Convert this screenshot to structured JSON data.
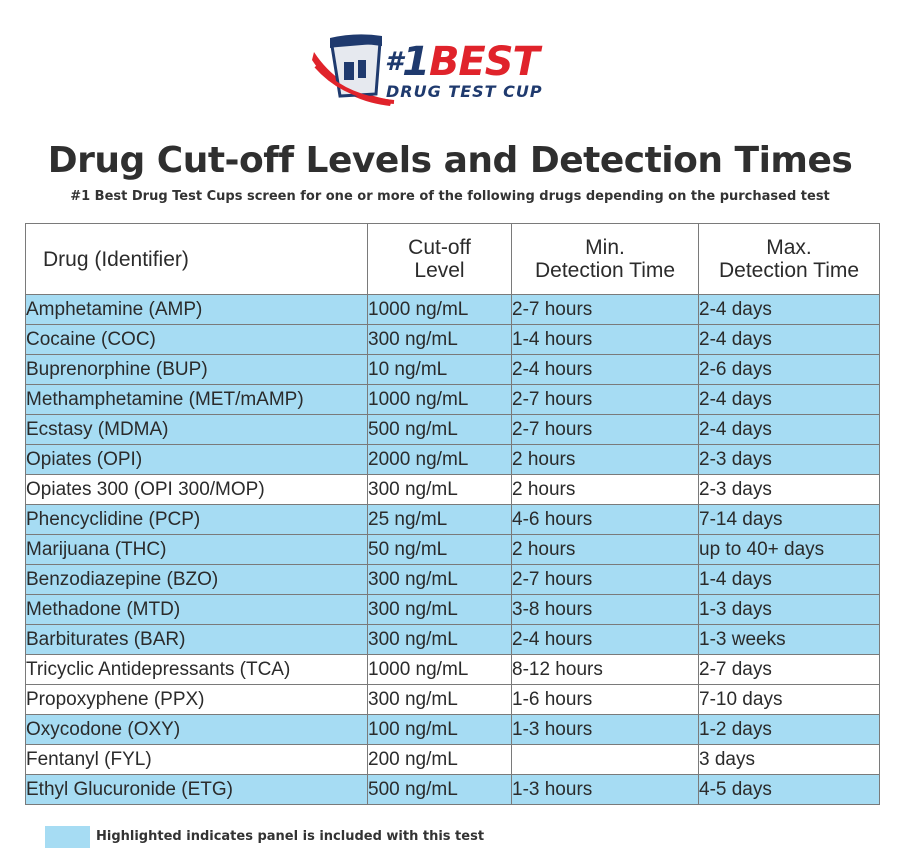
{
  "logo": {
    "hash": "#",
    "number": "1",
    "brand": "BEST",
    "tagline": "DRUG TEST CUP",
    "colors": {
      "navy": "#1f3a6e",
      "red": "#e0232b"
    }
  },
  "title": "Drug Cut-off Levels and Detection Times",
  "subtitle": "#1 Best Drug Test Cups screen for one or more of the following drugs depending on the purchased test",
  "table": {
    "headers": {
      "drug": "Drug (Identifier)",
      "cutoff_1": "Cut-off",
      "cutoff_2": "Level",
      "min_1": "Min.",
      "min_2": "Detection Time",
      "max_1": "Max.",
      "max_2": "Detection Time"
    },
    "highlight_color": "#a6dcf3",
    "rows": [
      {
        "drug": "Amphetamine (AMP)",
        "cutoff": "1000 ng/mL",
        "min": "2-7 hours",
        "max": "2-4 days",
        "highlighted": true
      },
      {
        "drug": "Cocaine (COC)",
        "cutoff": "300 ng/mL",
        "min": "1-4 hours",
        "max": "2-4 days",
        "highlighted": true
      },
      {
        "drug": "Buprenorphine (BUP)",
        "cutoff": "10 ng/mL",
        "min": "2-4 hours",
        "max": "2-6 days",
        "highlighted": true
      },
      {
        "drug": "Methamphetamine (MET/mAMP)",
        "cutoff": "1000 ng/mL",
        "min": "2-7 hours",
        "max": "2-4 days",
        "highlighted": true
      },
      {
        "drug": "Ecstasy (MDMA)",
        "cutoff": "500 ng/mL",
        "min": "2-7 hours",
        "max": "2-4 days",
        "highlighted": true
      },
      {
        "drug": "Opiates (OPI)",
        "cutoff": "2000 ng/mL",
        "min": "2 hours",
        "max": "2-3 days",
        "highlighted": true
      },
      {
        "drug": "Opiates 300 (OPI 300/MOP)",
        "cutoff": "300 ng/mL",
        "min": "2 hours",
        "max": "2-3 days",
        "highlighted": false
      },
      {
        "drug": "Phencyclidine (PCP)",
        "cutoff": "25 ng/mL",
        "min": "4-6 hours",
        "max": "7-14 days",
        "highlighted": true
      },
      {
        "drug": "Marijuana (THC)",
        "cutoff": "50 ng/mL",
        "min": "2 hours",
        "max": "up to 40+ days",
        "highlighted": true
      },
      {
        "drug": "Benzodiazepine (BZO)",
        "cutoff": "300 ng/mL",
        "min": "2-7 hours",
        "max": "1-4 days",
        "highlighted": true
      },
      {
        "drug": "Methadone (MTD)",
        "cutoff": "300 ng/mL",
        "min": "3-8 hours",
        "max": "1-3 days",
        "highlighted": true
      },
      {
        "drug": "Barbiturates (BAR)",
        "cutoff": "300 ng/mL",
        "min": "2-4 hours",
        "max": "1-3 weeks",
        "highlighted": true
      },
      {
        "drug": "Tricyclic Antidepressants (TCA)",
        "cutoff": "1000 ng/mL",
        "min": "8-12 hours",
        "max": "2-7 days",
        "highlighted": false
      },
      {
        "drug": "Propoxyphene (PPX)",
        "cutoff": "300 ng/mL",
        "min": "1-6 hours",
        "max": "7-10 days",
        "highlighted": false
      },
      {
        "drug": "Oxycodone (OXY)",
        "cutoff": "100 ng/mL",
        "min": "1-3 hours",
        "max": "1-2 days",
        "highlighted": true
      },
      {
        "drug": "Fentanyl (FYL)",
        "cutoff": "200 ng/mL",
        "min": "",
        "max": "3 days",
        "highlighted": false
      },
      {
        "drug": "Ethyl Glucuronide (ETG)",
        "cutoff": "500 ng/mL",
        "min": "1-3 hours",
        "max": "4-5 days",
        "highlighted": true
      }
    ]
  },
  "legend": {
    "text": "Highlighted indicates panel is included with this test"
  }
}
